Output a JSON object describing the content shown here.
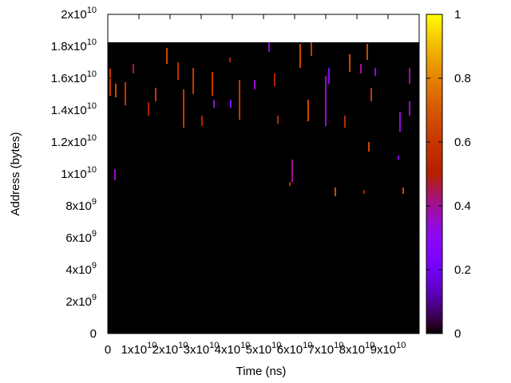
{
  "chart_data": {
    "type": "heatmap",
    "xlabel": "Time (ns)",
    "ylabel": "Address (bytes)",
    "xlim": [
      0,
      100000000000
    ],
    "ylim": [
      0,
      20000000000
    ],
    "clim": [
      0,
      1
    ],
    "data_extent": {
      "x": [
        0,
        100000000000
      ],
      "y": [
        0,
        18250000000
      ]
    },
    "xticks": [
      0,
      {
        "value": 10000000000,
        "label": "1x10",
        "exponent": "10"
      },
      {
        "value": 20000000000,
        "label": "2x10",
        "exponent": "10"
      },
      {
        "value": 30000000000,
        "label": "3x10",
        "exponent": "10"
      },
      {
        "value": 40000000000,
        "label": "4x10",
        "exponent": "10"
      },
      {
        "value": 50000000000,
        "label": "5x10",
        "exponent": "10"
      },
      {
        "value": 60000000000,
        "label": "6x10",
        "exponent": "10"
      },
      {
        "value": 70000000000,
        "label": "7x10",
        "exponent": "10"
      },
      {
        "value": 80000000000,
        "label": "8x10",
        "exponent": "10"
      },
      {
        "value": 90000000000,
        "label": "9x10",
        "exponent": "10"
      }
    ],
    "yticks": [
      0,
      {
        "value": 2000000000,
        "label": "2x10",
        "exponent": "9"
      },
      {
        "value": 4000000000,
        "label": "4x10",
        "exponent": "9"
      },
      {
        "value": 6000000000,
        "label": "6x10",
        "exponent": "9"
      },
      {
        "value": 8000000000,
        "label": "8x10",
        "exponent": "9"
      },
      {
        "value": 10000000000,
        "label": "1x10",
        "exponent": "10"
      },
      {
        "value": 12000000000,
        "label": "1.2x10",
        "exponent": "10"
      },
      {
        "value": 14000000000,
        "label": "1.4x10",
        "exponent": "10"
      },
      {
        "value": 16000000000,
        "label": "1.6x10",
        "exponent": "10"
      },
      {
        "value": 18000000000,
        "label": "1.8x10",
        "exponent": "10"
      },
      {
        "value": 20000000000,
        "label": "2x10",
        "exponent": "10"
      }
    ],
    "cticks": [
      0,
      0.2,
      0.4,
      0.6,
      0.8,
      1
    ],
    "x": [
      770000000,
      2310000000,
      2560000000,
      5640000000,
      8210000000,
      13080000000,
      15380000000,
      18970000000,
      22560000000,
      24360000000,
      27440000000,
      30260000000,
      33590000000,
      34100000000,
      39230000000,
      39490000000,
      42310000000,
      47180000000,
      51790000000,
      53590000000,
      54620000000,
      59230000000,
      58460000000,
      61790000000,
      64360000000,
      65380000000,
      70000000000,
      71030000000,
      73080000000,
      76150000000,
      77690000000,
      81280000000,
      82310000000,
      83330000000,
      83850000000,
      85900000000,
      84620000000,
      93330000000,
      93850000000,
      94870000000,
      96920000000,
      96920000000
    ],
    "y0": [
      14900000000,
      9600000000,
      14800000000,
      14300000000,
      16300000000,
      13650000000,
      14550000000,
      16900000000,
      15900000000,
      12900000000,
      15000000000,
      13000000000,
      14900000000,
      14150000000,
      17000000000,
      14150000000,
      13400000000,
      15300000000,
      17650000000,
      15500000000,
      13150000000,
      9500000000,
      9250000000,
      16650000000,
      13300000000,
      17400000000,
      13000000000,
      15650000000,
      8600000000,
      12900000000,
      16400000000,
      16300000000,
      8750000000,
      17150000000,
      11400000000,
      16150000000,
      14550000000,
      10900000000,
      12650000000,
      8750000000,
      15650000000,
      13650000000
    ],
    "y1": [
      16600000000,
      10300000000,
      15650000000,
      15750000000,
      16900000000,
      14500000000,
      15400000000,
      17900000000,
      17000000000,
      15300000000,
      16650000000,
      13650000000,
      16400000000,
      14650000000,
      17300000000,
      14650000000,
      15900000000,
      15900000000,
      18250000000,
      16300000000,
      13650000000,
      10900000000,
      9500000000,
      18150000000,
      14650000000,
      18250000000,
      16150000000,
      16650000000,
      9150000000,
      13650000000,
      17500000000,
      16900000000,
      9000000000,
      18150000000,
      12000000000,
      16650000000,
      15400000000,
      11150000000,
      13900000000,
      9150000000,
      16650000000,
      14550000000
    ],
    "values": [
      0.6,
      0.35,
      0.65,
      0.6,
      0.45,
      0.5,
      0.6,
      0.65,
      0.55,
      0.6,
      0.6,
      0.5,
      0.6,
      0.35,
      0.5,
      0.3,
      0.6,
      0.35,
      0.35,
      0.5,
      0.55,
      0.4,
      0.55,
      0.65,
      0.65,
      0.6,
      0.35,
      0.3,
      0.65,
      0.55,
      0.65,
      0.4,
      0.5,
      0.65,
      0.65,
      0.3,
      0.6,
      0.3,
      0.35,
      0.65,
      0.4,
      0.35
    ],
    "palette": "rgbformulae 7,5,15",
    "background_color": "#000000"
  }
}
